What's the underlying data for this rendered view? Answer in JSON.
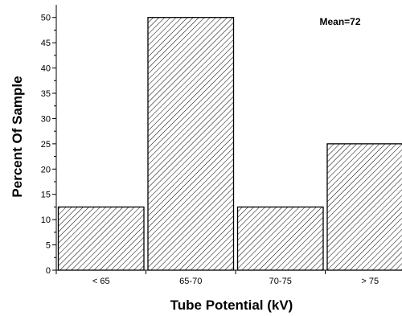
{
  "chart_data": {
    "type": "bar",
    "categories": [
      "< 65",
      "65-70",
      "70-75",
      "> 75"
    ],
    "values": [
      12.5,
      50,
      12.5,
      25
    ],
    "xlabel": "Tube Potential (kV)",
    "ylabel": "Percent Of Sample",
    "ylim": [
      0,
      52.5
    ],
    "yticks": [
      0,
      5,
      10,
      15,
      20,
      25,
      30,
      35,
      40,
      45,
      50
    ],
    "annotation": "Mean=72",
    "grid": false,
    "bar_fill": "hatched",
    "colors": {
      "bar_stroke": "#000000",
      "hatch": "#000000",
      "background": "#ffffff"
    }
  }
}
